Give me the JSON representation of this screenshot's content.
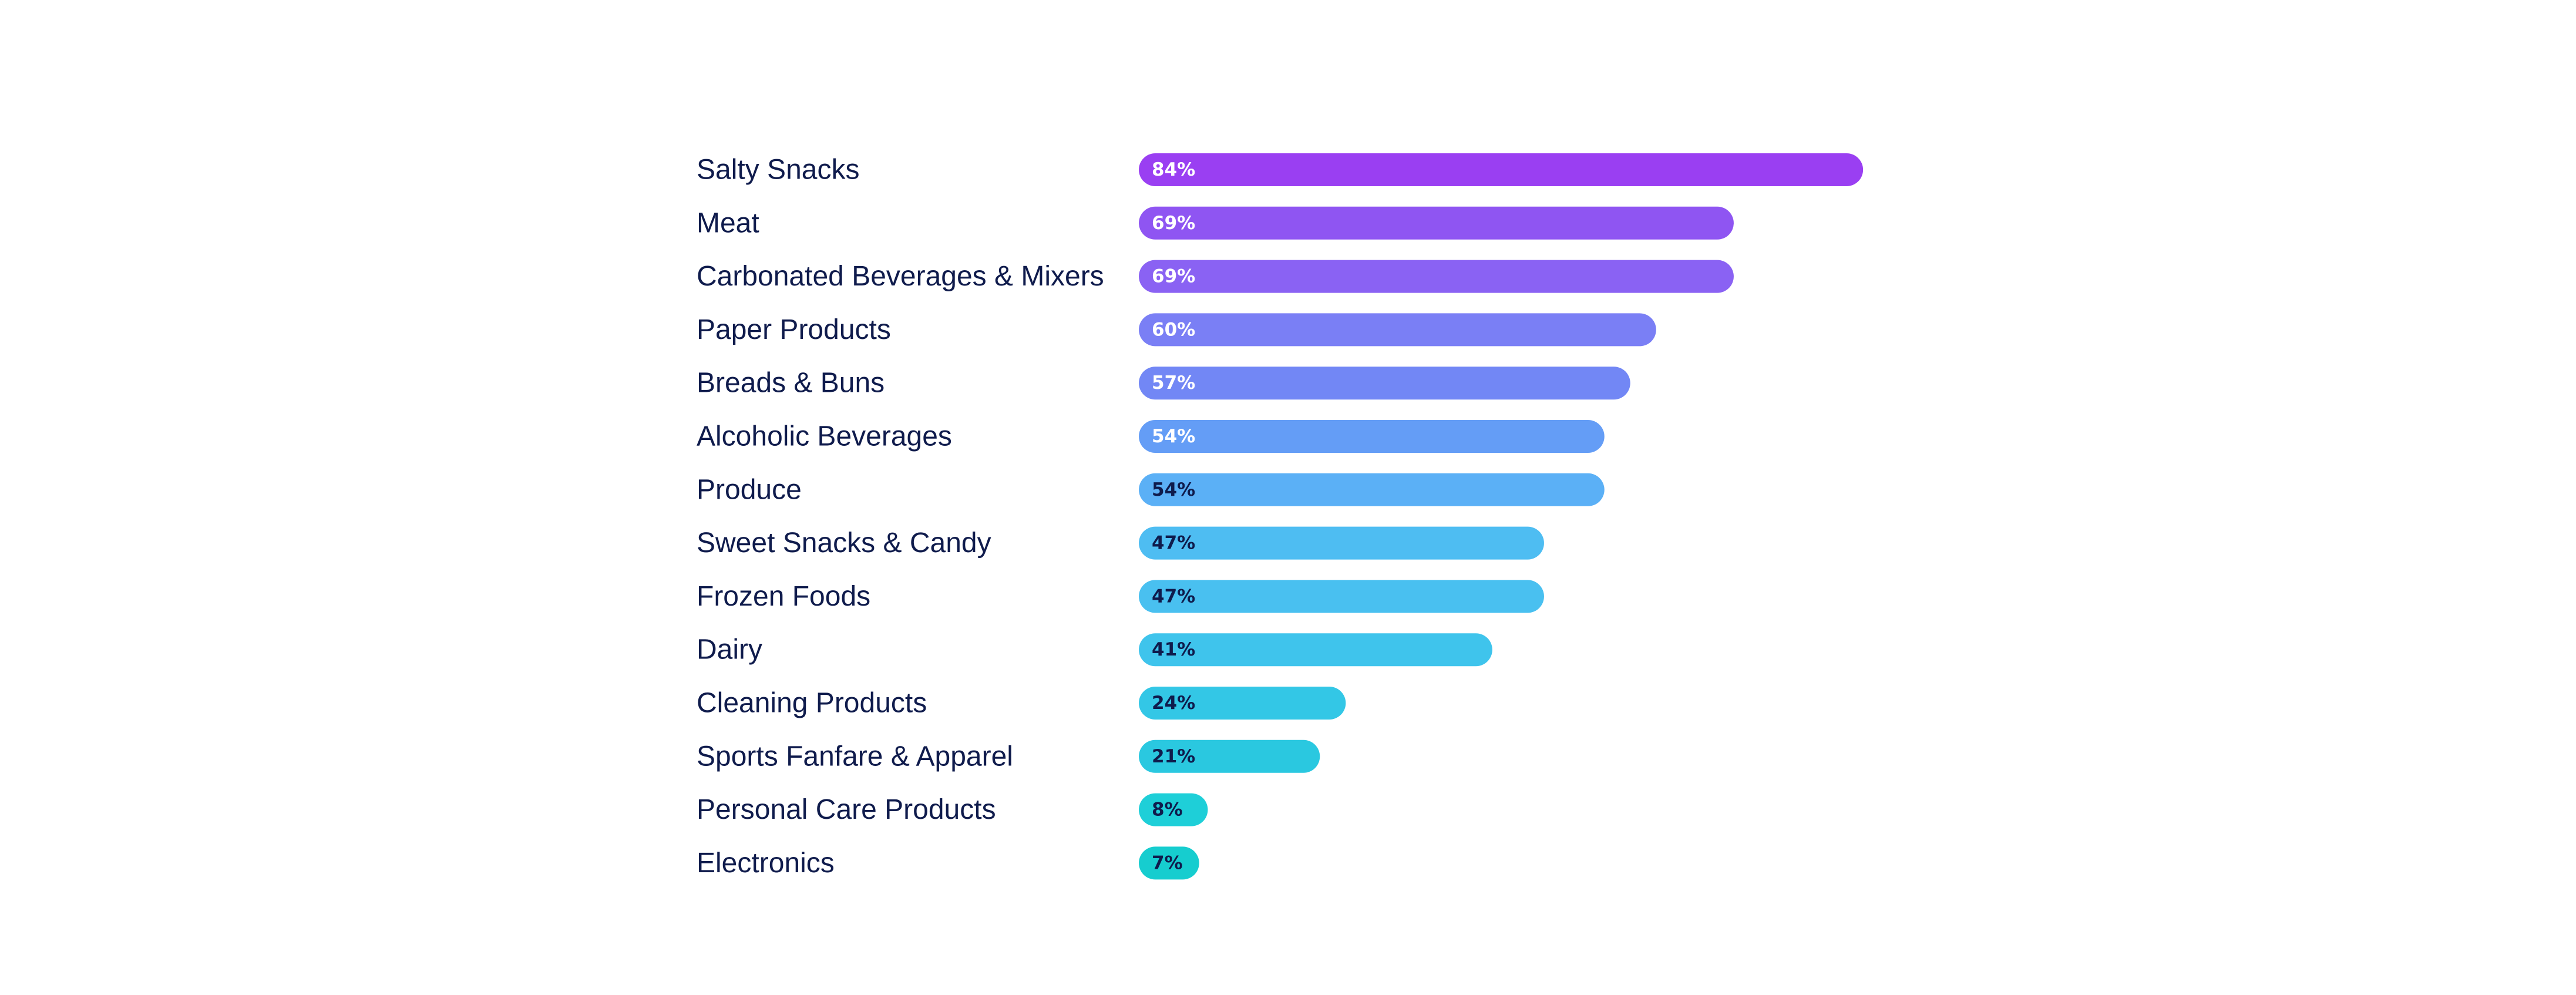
{
  "chart_data": {
    "type": "bar",
    "orientation": "horizontal",
    "title": "",
    "xlabel": "",
    "ylabel": "",
    "xlim": [
      0,
      100
    ],
    "grid": false,
    "legend": "none",
    "categories": [
      "Salty Snacks",
      "Meat",
      "Carbonated Beverages & Mixers",
      "Paper Products",
      "Breads & Buns",
      "Alcoholic Beverages",
      "Produce",
      "Sweet Snacks & Candy",
      "Frozen Foods",
      "Dairy",
      "Cleaning Products",
      "Sports Fanfare & Apparel",
      "Personal Care Products",
      "Electronics"
    ],
    "values": [
      84,
      69,
      69,
      60,
      57,
      54,
      54,
      47,
      47,
      41,
      24,
      21,
      8,
      7
    ],
    "value_labels": [
      "84%",
      "69%",
      "69%",
      "60%",
      "57%",
      "54%",
      "54%",
      "47%",
      "47%",
      "41%",
      "24%",
      "21%",
      "8%",
      "7%"
    ],
    "colors": [
      "#9a3ff2",
      "#8f55f2",
      "#8a62f3",
      "#7a7ff5",
      "#7287f5",
      "#649df6",
      "#5bb0f6",
      "#4ebdf2",
      "#49c0f0",
      "#3fc4ec",
      "#33c7e6",
      "#2ac8e0",
      "#1ecfd8",
      "#16cdcf"
    ],
    "value_label_colors": [
      "#ffffff",
      "#ffffff",
      "#ffffff",
      "#ffffff",
      "#ffffff",
      "#ffffff",
      "#0f1b4c",
      "#0f1b4c",
      "#0f1b4c",
      "#0f1b4c",
      "#0f1b4c",
      "#0f1b4c",
      "#0f1b4c",
      "#0f1b4c"
    ]
  }
}
